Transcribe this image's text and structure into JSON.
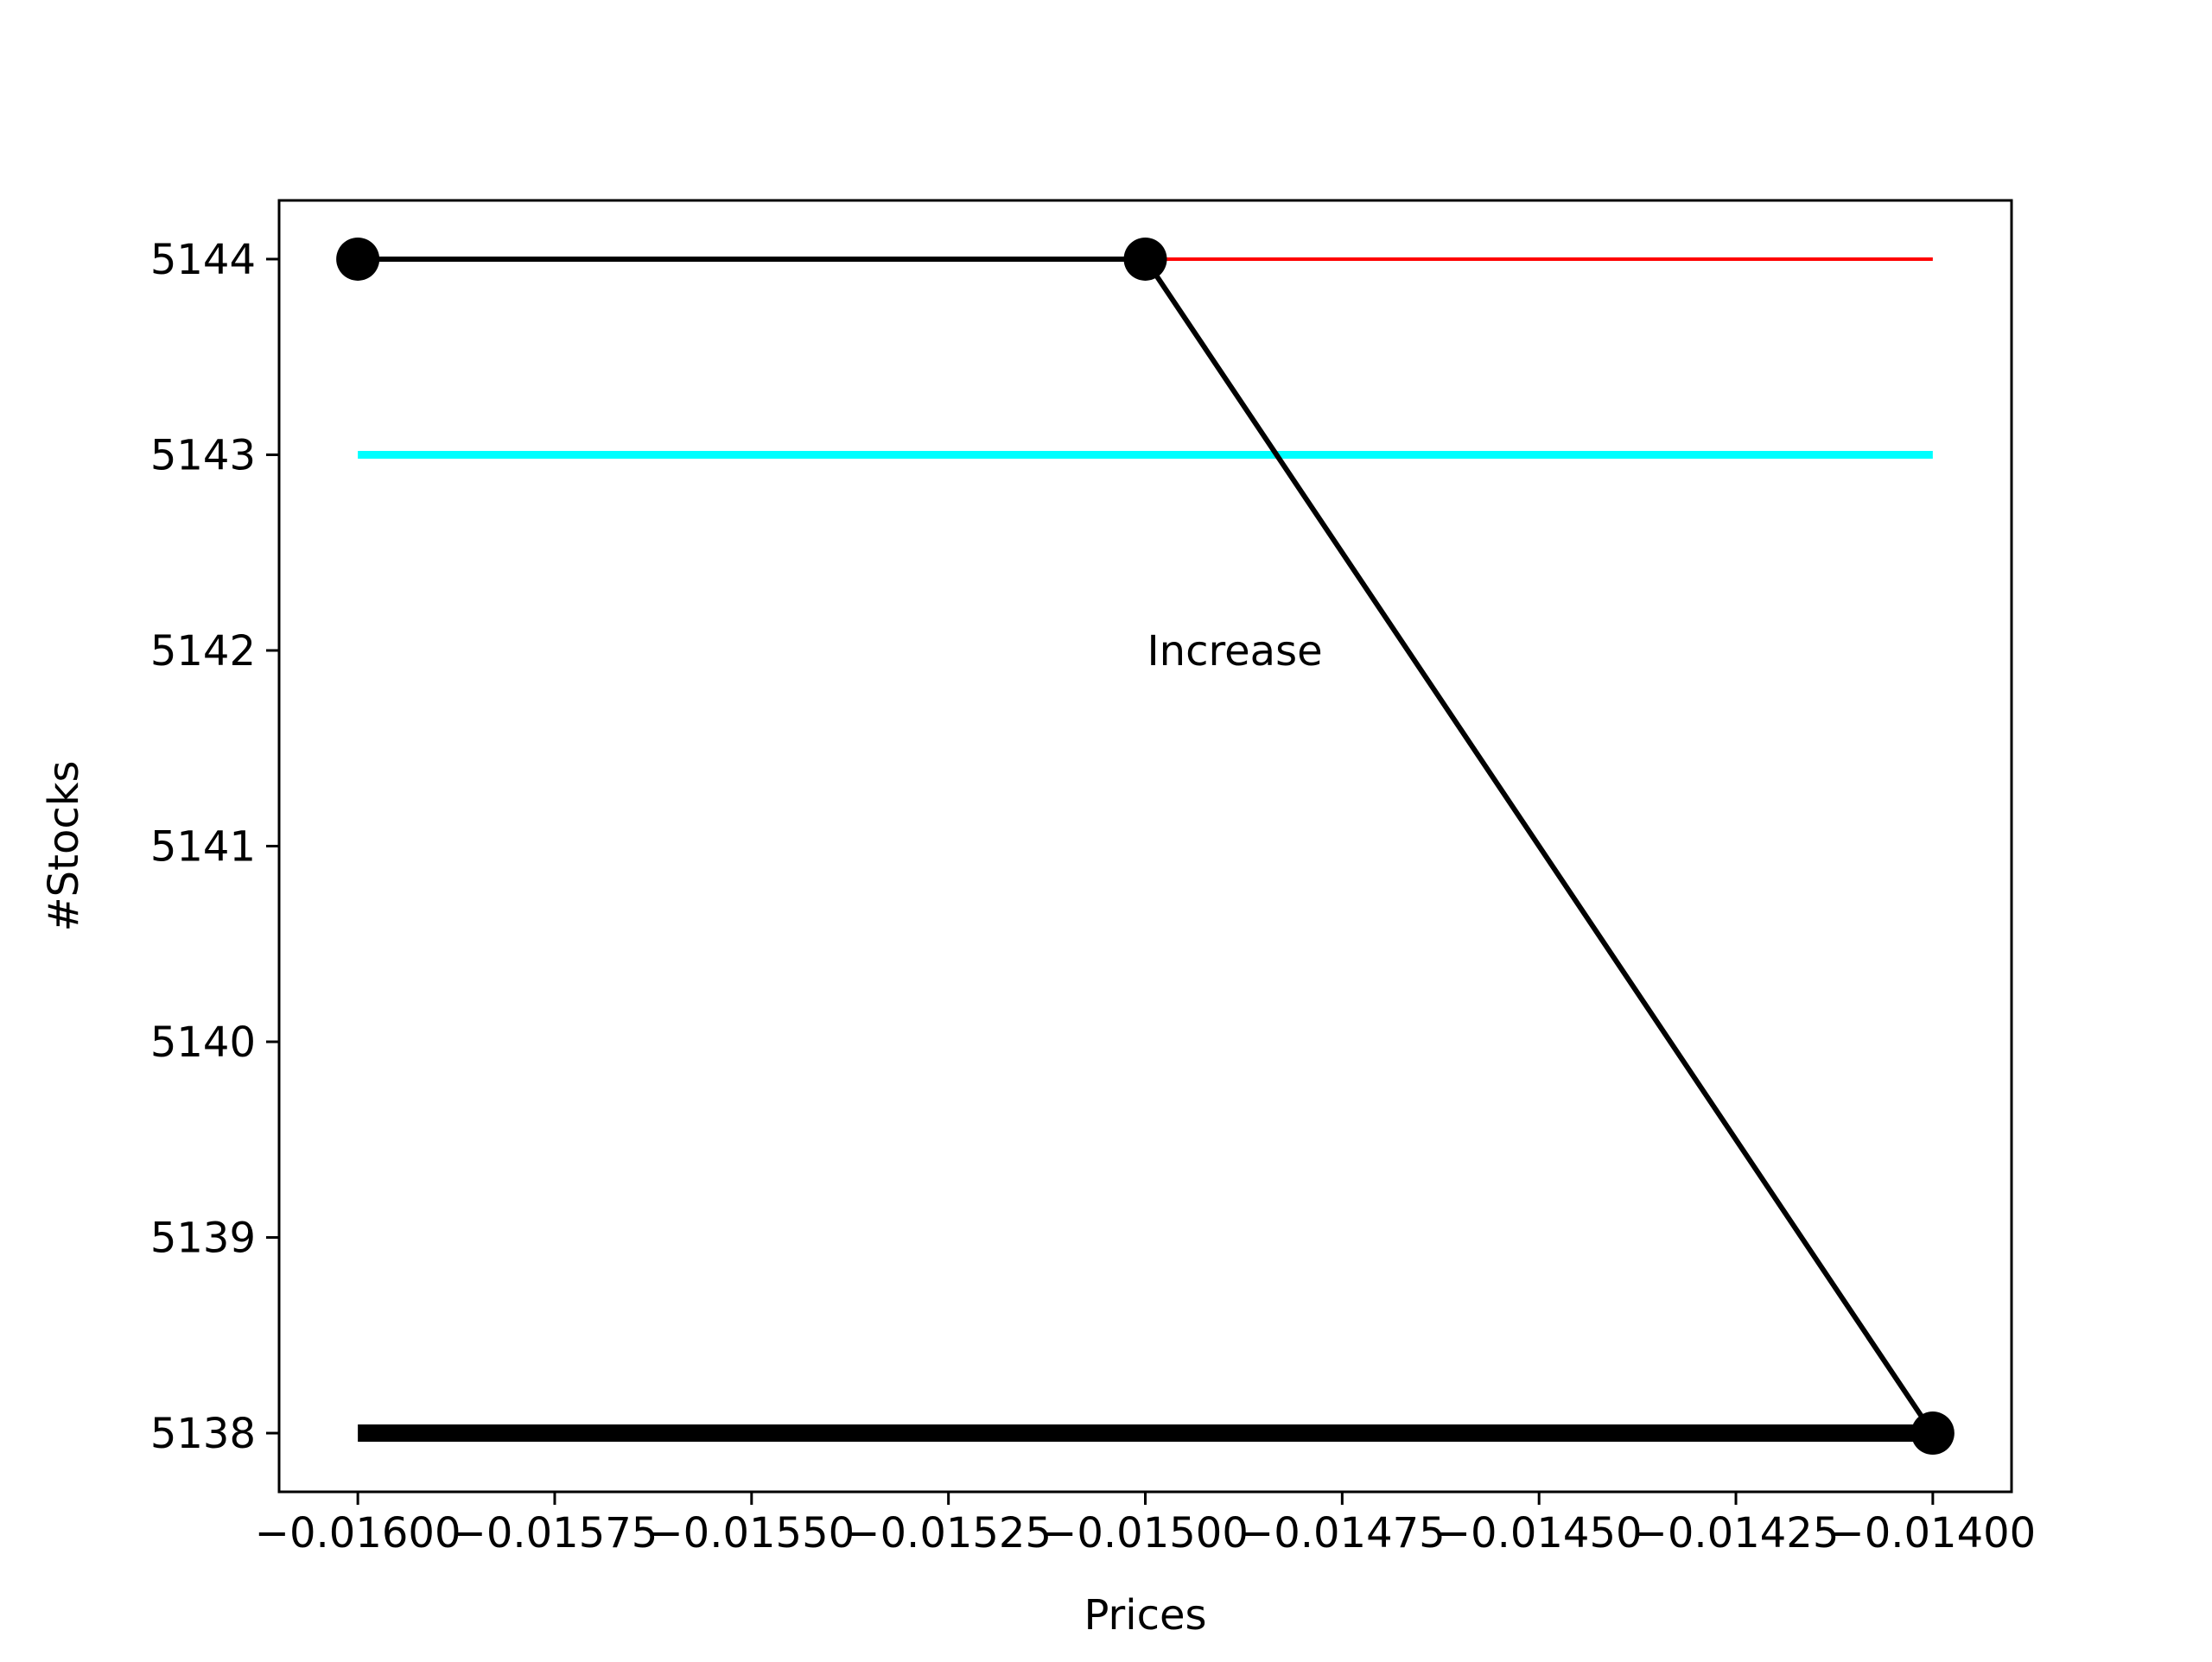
{
  "chart_data": {
    "type": "line",
    "xlabel": "Prices",
    "ylabel": "#Stocks",
    "xlim": [
      -0.0161,
      -0.0139
    ],
    "ylim": [
      5137.7,
      5144.3
    ],
    "xticks": [
      -0.016,
      -0.01575,
      -0.0155,
      -0.01525,
      -0.015,
      -0.01475,
      -0.0145,
      -0.01425,
      -0.014
    ],
    "xtick_labels": [
      "−0.01600",
      "−0.01575",
      "−0.01550",
      "−0.01525",
      "−0.01500",
      "−0.01475",
      "−0.01450",
      "−0.01425",
      "−0.01400"
    ],
    "yticks": [
      5138,
      5139,
      5140,
      5141,
      5142,
      5143,
      5144
    ],
    "ytick_labels": [
      "5138",
      "5139",
      "5140",
      "5141",
      "5142",
      "5143",
      "5144"
    ],
    "grid": false,
    "series": [
      {
        "color": "#000000",
        "line_width": "thick",
        "markers": false,
        "x": [
          -0.016,
          -0.014
        ],
        "y": [
          5138,
          5138
        ]
      },
      {
        "color": "#00ffff",
        "line_width": "medium",
        "markers": false,
        "x": [
          -0.016,
          -0.014
        ],
        "y": [
          5143,
          5143
        ]
      },
      {
        "color": "#ff0000",
        "line_width": "thin",
        "markers": false,
        "x": [
          -0.015,
          -0.014
        ],
        "y": [
          5144,
          5144
        ]
      },
      {
        "color": "#000000",
        "line_width": "normal",
        "markers": true,
        "x": [
          -0.016,
          -0.015,
          -0.014
        ],
        "y": [
          5144,
          5144,
          5138
        ]
      }
    ],
    "annotations": [
      {
        "text": "Increase",
        "x": -0.015,
        "y": 5142.0
      }
    ]
  }
}
